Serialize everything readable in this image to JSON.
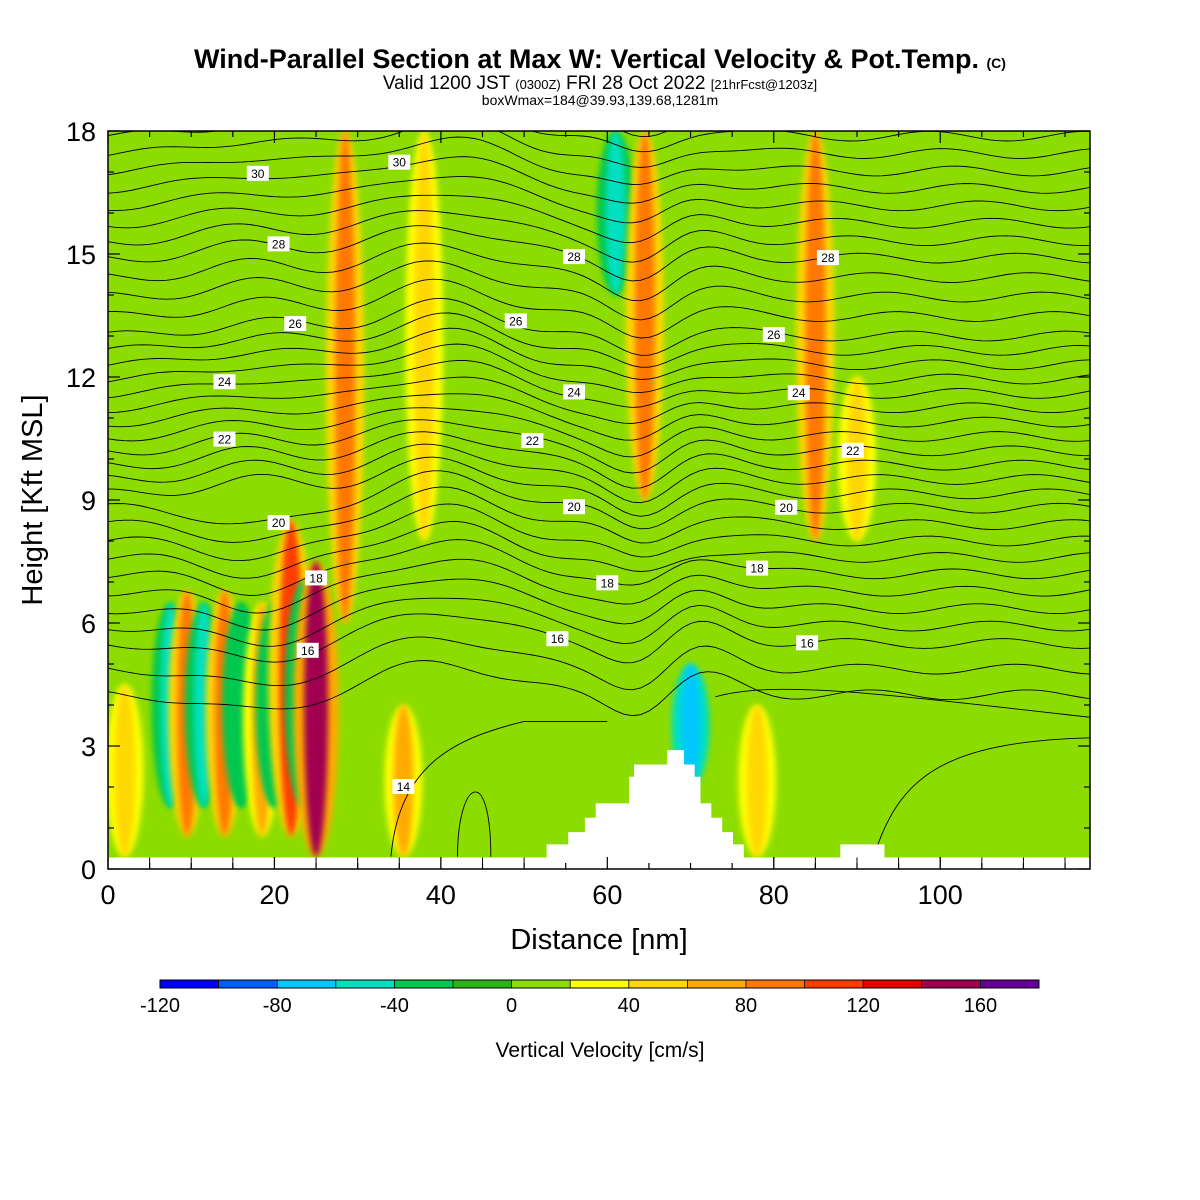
{
  "header": {
    "title_main": "Wind-Parallel Section at Max W: Vertical Velocity & Pot.Temp.",
    "title_copyright": "(C)",
    "valid_prefix": "Valid 1200 JST",
    "valid_utc": "(0300Z)",
    "valid_date": "FRI 28 Oct 2022",
    "valid_fcst": "[21hrFcst@1203z]",
    "box_wmax": "boxWmax=184@39.93,139.68,1281m"
  },
  "chart_data": {
    "type": "heatmap",
    "xlabel": "Distance [nm]",
    "ylabel": "Height [Kft MSL]",
    "xlim": [
      0,
      118
    ],
    "ylim": [
      0,
      18
    ],
    "x_ticks": [
      0,
      20,
      40,
      60,
      80,
      100
    ],
    "y_ticks": [
      0,
      3,
      6,
      9,
      12,
      15,
      18
    ],
    "colorbar": {
      "label": "Vertical Velocity [cm/s]",
      "min": -120,
      "max": 180,
      "step": 20,
      "tick_values": [
        -120,
        -80,
        -40,
        0,
        40,
        80,
        120,
        160
      ],
      "colors": [
        "#0000ff",
        "#0060ff",
        "#00c8ff",
        "#00e0c0",
        "#00c850",
        "#2db414",
        "#8cdc00",
        "#ffff00",
        "#ffd700",
        "#ffaa00",
        "#ff7800",
        "#ff3c00",
        "#e60000",
        "#a00050",
        "#640096"
      ]
    },
    "background_w_cmps": 0,
    "w_features": [
      {
        "x": 2,
        "z_min": 0.3,
        "z_max": 4.5,
        "w": 40
      },
      {
        "x": 7.5,
        "z_min": 1.5,
        "z_max": 6.5,
        "w": -60
      },
      {
        "x": 9.5,
        "z_min": 0.8,
        "z_max": 6.8,
        "w": 80
      },
      {
        "x": 11.5,
        "z_min": 1.5,
        "z_max": 6.5,
        "w": -60
      },
      {
        "x": 14,
        "z_min": 0.8,
        "z_max": 6.8,
        "w": 80
      },
      {
        "x": 16,
        "z_min": 1.5,
        "z_max": 6.5,
        "w": -40
      },
      {
        "x": 18.5,
        "z_min": 0.8,
        "z_max": 6.5,
        "w": 60
      },
      {
        "x": 20,
        "z_min": 1.5,
        "z_max": 6.5,
        "w": -40
      },
      {
        "x": 22,
        "z_min": 0.8,
        "z_max": 8.5,
        "w": 100
      },
      {
        "x": 23.5,
        "z_min": 1.5,
        "z_max": 7,
        "w": -40
      },
      {
        "x": 25,
        "z_min": 0.3,
        "z_max": 7.5,
        "w": 140
      },
      {
        "x": 28.5,
        "z_min": 6,
        "z_max": 18,
        "w": 80
      },
      {
        "x": 35.5,
        "z_min": 0.3,
        "z_max": 4,
        "w": 60
      },
      {
        "x": 38,
        "z_min": 8,
        "z_max": 18,
        "w": 40
      },
      {
        "x": 61,
        "z_min": 14,
        "z_max": 18,
        "w": -60
      },
      {
        "x": 64.5,
        "z_min": 9,
        "z_max": 18,
        "w": 80
      },
      {
        "x": 70,
        "z_min": 2,
        "z_max": 5,
        "w": -80
      },
      {
        "x": 78,
        "z_min": 0.3,
        "z_max": 4,
        "w": 40
      },
      {
        "x": 85,
        "z_min": 8,
        "z_max": 18,
        "w": 80
      },
      {
        "x": 90,
        "z_min": 8,
        "z_max": 12,
        "w": 40
      }
    ],
    "terrain": [
      {
        "x": 0,
        "z": 0.28
      },
      {
        "x": 52.7,
        "z": 0.28
      },
      {
        "x": 52.7,
        "z": 0.6
      },
      {
        "x": 55.3,
        "z": 0.6
      },
      {
        "x": 55.3,
        "z": 0.9
      },
      {
        "x": 57.3,
        "z": 0.9
      },
      {
        "x": 57.3,
        "z": 1.25
      },
      {
        "x": 58.6,
        "z": 1.25
      },
      {
        "x": 58.6,
        "z": 1.6
      },
      {
        "x": 62.6,
        "z": 1.6
      },
      {
        "x": 62.6,
        "z": 2.25
      },
      {
        "x": 63.2,
        "z": 2.25
      },
      {
        "x": 63.2,
        "z": 2.55
      },
      {
        "x": 67.2,
        "z": 2.55
      },
      {
        "x": 67.2,
        "z": 2.9
      },
      {
        "x": 69.2,
        "z": 2.9
      },
      {
        "x": 69.2,
        "z": 2.55
      },
      {
        "x": 70.5,
        "z": 2.55
      },
      {
        "x": 70.5,
        "z": 2.25
      },
      {
        "x": 71.2,
        "z": 2.25
      },
      {
        "x": 71.2,
        "z": 1.6
      },
      {
        "x": 72.5,
        "z": 1.6
      },
      {
        "x": 72.5,
        "z": 1.25
      },
      {
        "x": 73.8,
        "z": 1.25
      },
      {
        "x": 73.8,
        "z": 0.9
      },
      {
        "x": 75.1,
        "z": 0.9
      },
      {
        "x": 75.1,
        "z": 0.6
      },
      {
        "x": 76.4,
        "z": 0.6
      },
      {
        "x": 76.4,
        "z": 0.28
      },
      {
        "x": 88.0,
        "z": 0.28
      },
      {
        "x": 88.0,
        "z": 0.6
      },
      {
        "x": 93.3,
        "z": 0.6
      },
      {
        "x": 93.3,
        "z": 0.28
      },
      {
        "x": 118,
        "z": 0.28
      }
    ],
    "theta_contours": [
      {
        "level": 16,
        "label_x": [
          24,
          54,
          84
        ]
      },
      {
        "level": 18,
        "label_x": [
          25,
          60,
          78
        ]
      },
      {
        "level": 20,
        "label_x": [
          20.5,
          56,
          81.5
        ]
      },
      {
        "level": 22,
        "label_x": [
          14,
          51,
          89.5
        ]
      },
      {
        "level": 24,
        "label_x": [
          14,
          56,
          83
        ]
      },
      {
        "level": 26,
        "label_x": [
          22.5,
          49,
          80
        ]
      },
      {
        "level": 28,
        "label_x": [
          20.5,
          56,
          86.5
        ]
      },
      {
        "level": 30,
        "label_x": [
          18,
          35
        ]
      }
    ],
    "theta_base_14_label": {
      "level": 14,
      "label_x": 35.5
    }
  }
}
